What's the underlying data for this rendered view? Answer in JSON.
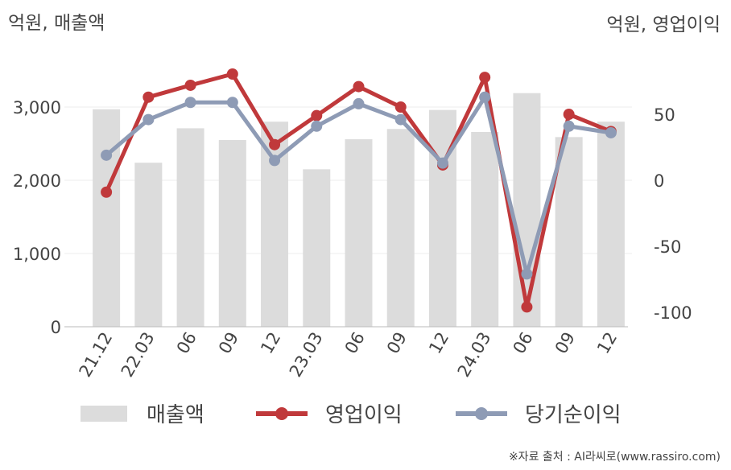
{
  "chart_data": {
    "type": "bar-line",
    "y_label": "억원, 매출액",
    "y2_label": "억원, 영업이익",
    "source": "※자료 출처 : AI라씨로(www.rassiro.com)",
    "categories": [
      "21.12",
      "22.03",
      "06",
      "09",
      "12",
      "23.03",
      "06",
      "09",
      "12",
      "24.03",
      "06",
      "09",
      "12"
    ],
    "ylim": [
      0,
      4000
    ],
    "yticks": [
      0,
      {
        "value": 1000,
        "label": "1,000"
      },
      {
        "value": 2000,
        "label": "2,000"
      },
      {
        "value": 3000,
        "label": "3,000"
      }
    ],
    "y2lim": [
      -111,
      111
    ],
    "y2ticks": [
      -100,
      -50,
      0,
      50
    ],
    "grid": true,
    "series": [
      {
        "name": "매출액",
        "type": "bar",
        "color": "#dcdcdc",
        "values": [
          2970,
          2240,
          2710,
          2550,
          2800,
          2150,
          2560,
          2700,
          2960,
          2660,
          3190,
          2590,
          2800
        ]
      },
      {
        "name": "영업이익",
        "type": "line",
        "axis": "y2",
        "color": "#c0393b",
        "values": [
          -9,
          63,
          72,
          80.5,
          27,
          49,
          71,
          55.5,
          11.6,
          78,
          -96,
          50,
          37
        ]
      },
      {
        "name": "당기순이익",
        "type": "line",
        "axis": "y2",
        "color": "#8e9bb5",
        "values": [
          19,
          46,
          59,
          59,
          15,
          41,
          58,
          46,
          13,
          63,
          -71,
          41,
          36
        ]
      }
    ]
  }
}
